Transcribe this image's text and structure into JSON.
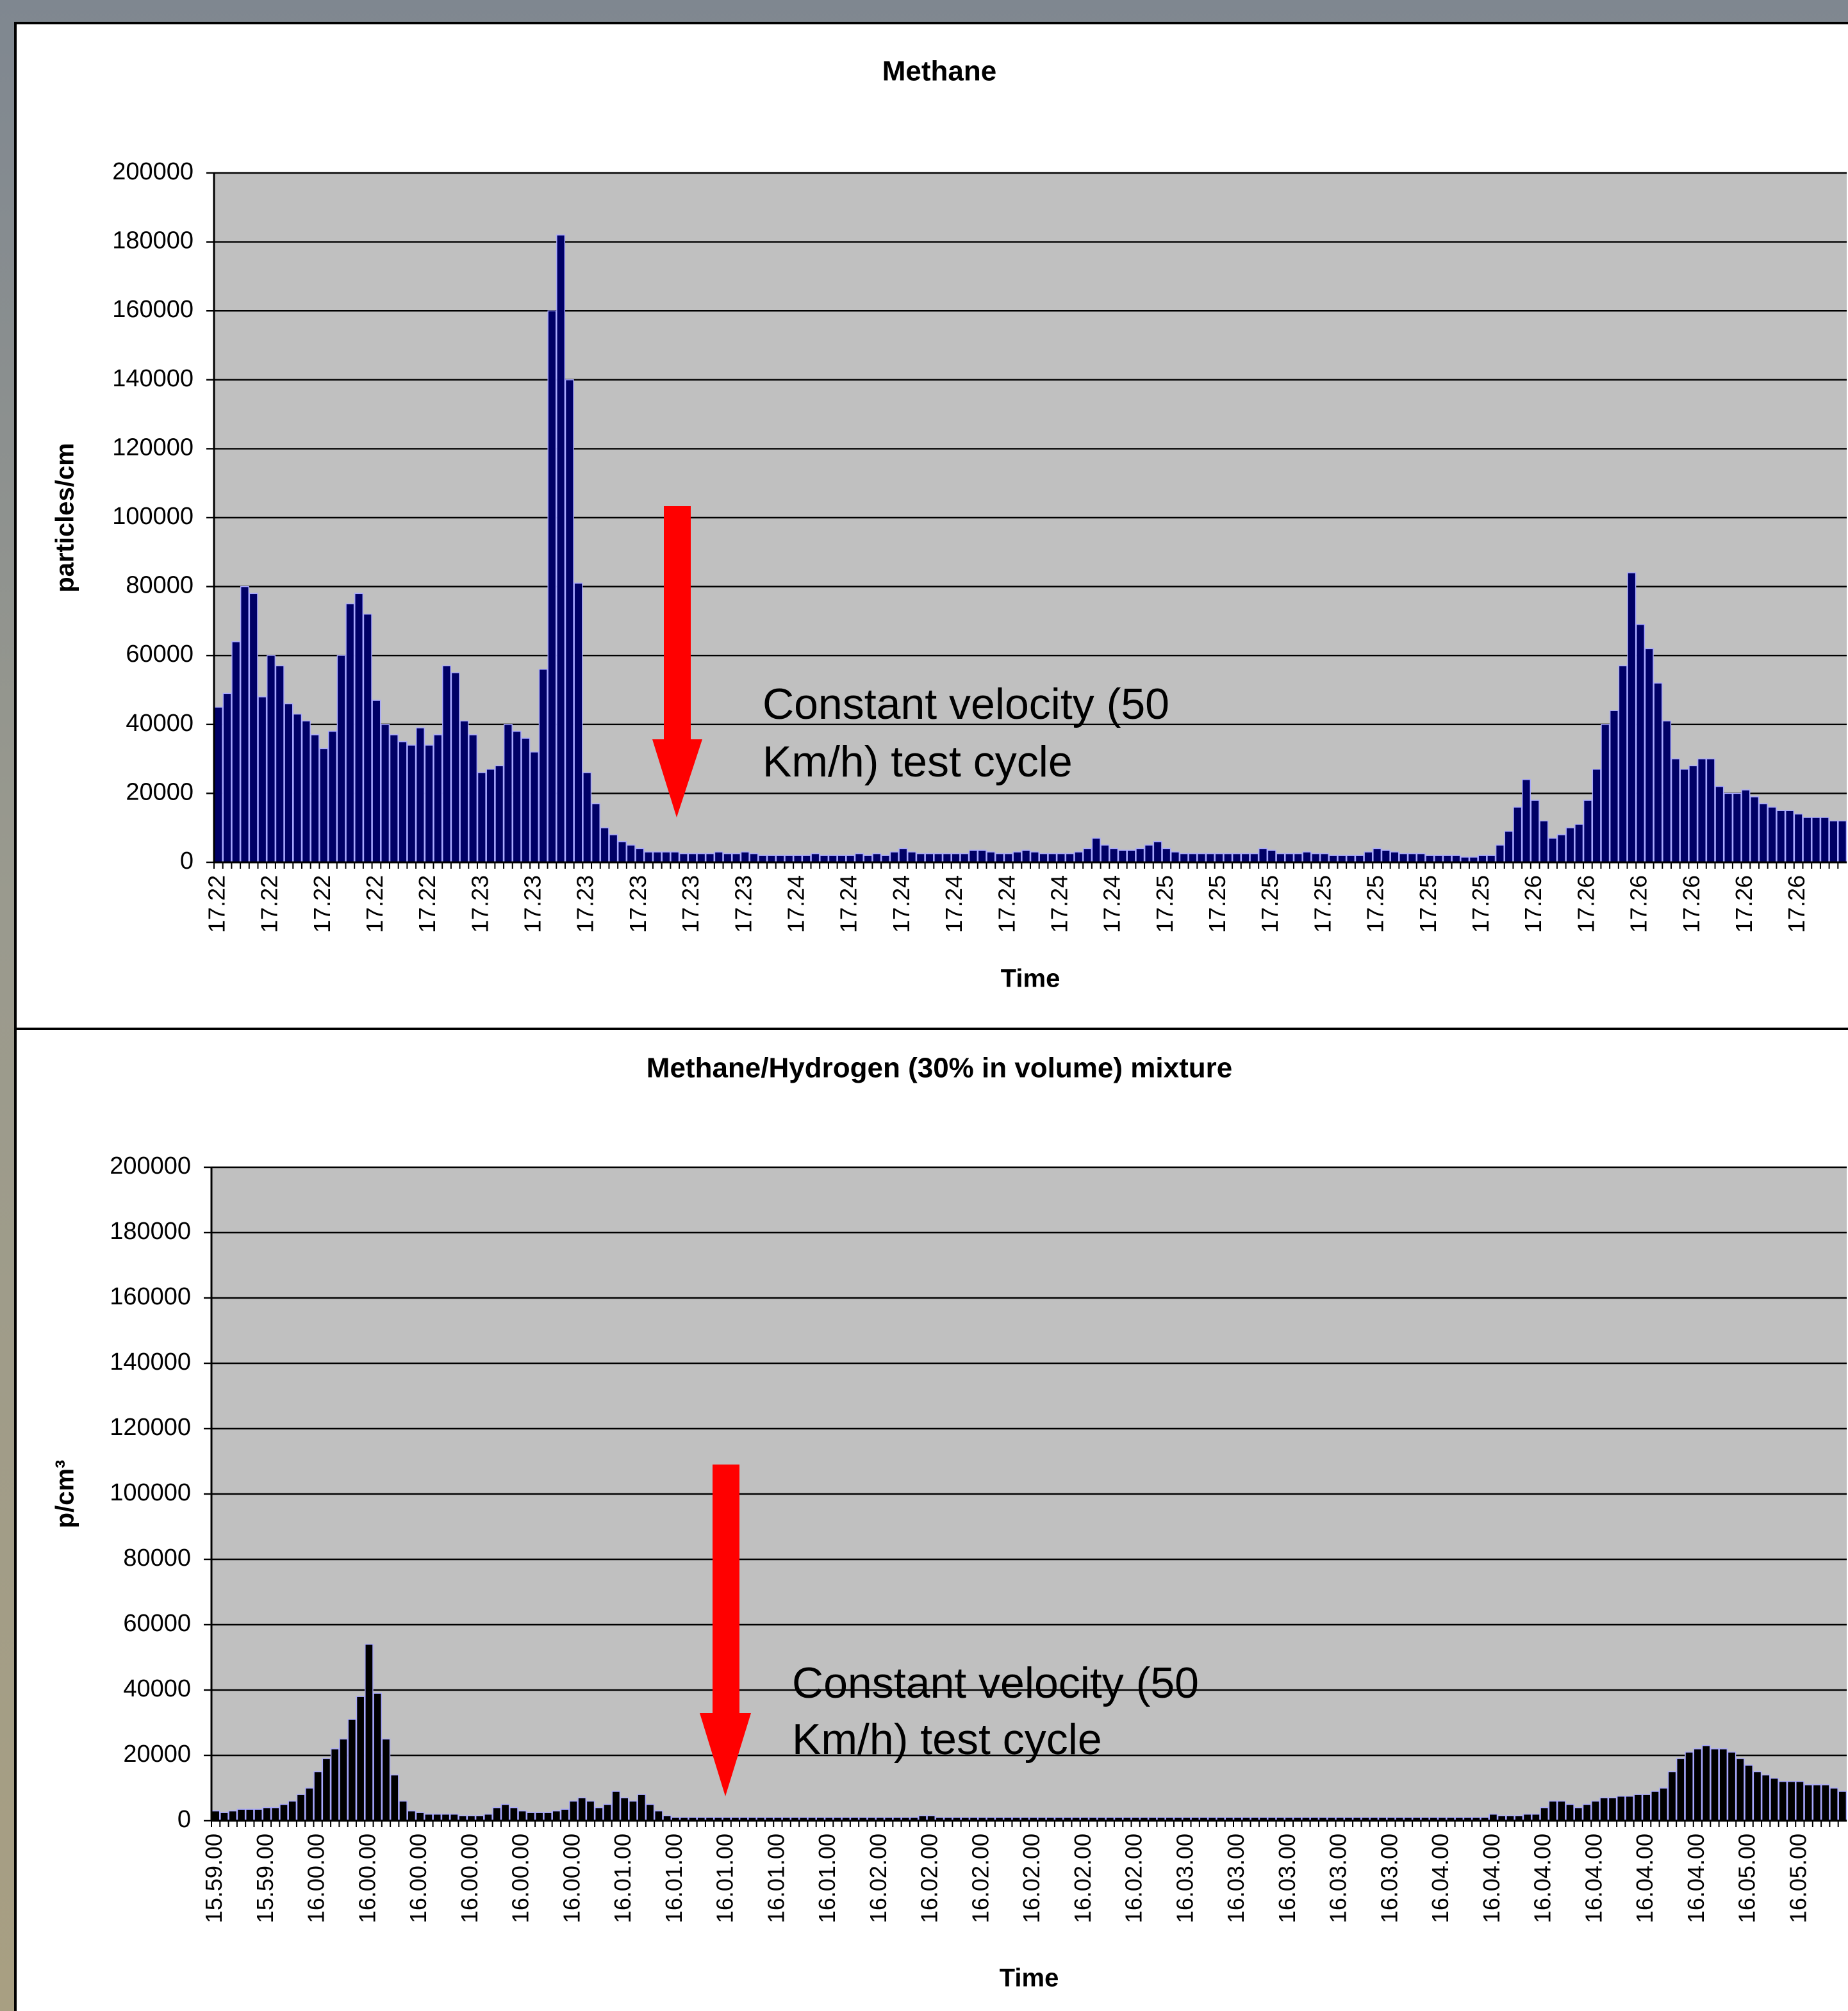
{
  "chart_data": [
    {
      "type": "bar",
      "title": "Methane",
      "xlabel": "Time",
      "ylabel": "particles/cm",
      "annotation": [
        "Constant velocity (50",
        "Km/h) test cycle"
      ],
      "color": "#000066",
      "ylim": [
        0,
        200000
      ],
      "yticks": [
        0,
        20000,
        40000,
        60000,
        80000,
        100000,
        120000,
        140000,
        160000,
        180000,
        200000
      ],
      "grid": true,
      "categories": [
        "17.22",
        null,
        null,
        null,
        null,
        null,
        "17.22",
        null,
        null,
        null,
        null,
        null,
        "17.22",
        null,
        null,
        null,
        null,
        null,
        "17.22",
        null,
        null,
        null,
        null,
        null,
        "17.22",
        null,
        null,
        null,
        null,
        null,
        "17.23",
        null,
        null,
        null,
        null,
        null,
        "17.23",
        null,
        null,
        null,
        null,
        null,
        "17.23",
        null,
        null,
        null,
        null,
        null,
        "17.23",
        null,
        null,
        null,
        null,
        null,
        "17.23",
        null,
        null,
        null,
        null,
        null,
        "17.23",
        null,
        null,
        null,
        null,
        null,
        "17.24",
        null,
        null,
        null,
        null,
        null,
        "17.24",
        null,
        null,
        null,
        null,
        null,
        "17.24",
        null,
        null,
        null,
        null,
        null,
        "17.24",
        null,
        null,
        null,
        null,
        null,
        "17.24",
        null,
        null,
        null,
        null,
        null,
        "17.24",
        null,
        null,
        null,
        null,
        null,
        "17.24",
        null,
        null,
        null,
        null,
        null,
        "17.25",
        null,
        null,
        null,
        null,
        null,
        "17.25",
        null,
        null,
        null,
        null,
        null,
        "17.25",
        null,
        null,
        null,
        null,
        null,
        "17.25",
        null,
        null,
        null,
        null,
        null,
        "17.25",
        null,
        null,
        null,
        null,
        null,
        "17.25",
        null,
        null,
        null,
        null,
        null,
        "17.25",
        null,
        null,
        null,
        null,
        null,
        "17.26",
        null,
        null,
        null,
        null,
        null,
        "17.26",
        null,
        null,
        null,
        null,
        null,
        "17.26",
        null,
        null,
        null,
        null,
        null,
        "17.26",
        null,
        null,
        null,
        null,
        null,
        "17.26",
        null,
        null,
        null,
        null,
        null,
        "17.26",
        null,
        null,
        null,
        null,
        null
      ],
      "values": [
        45000,
        49000,
        64000,
        80000,
        78000,
        48000,
        60000,
        57000,
        46000,
        43000,
        41000,
        37000,
        33000,
        38000,
        60000,
        75000,
        78000,
        72000,
        47000,
        40000,
        37000,
        35000,
        34000,
        39000,
        34000,
        37000,
        57000,
        55000,
        41000,
        37000,
        26000,
        27000,
        28000,
        40000,
        38000,
        36000,
        32000,
        56000,
        160000,
        182000,
        140000,
        81000,
        26000,
        17000,
        10000,
        8000,
        6000,
        5000,
        4000,
        3000,
        3000,
        3000,
        3000,
        2500,
        2500,
        2500,
        2500,
        3000,
        2500,
        2500,
        3000,
        2500,
        2000,
        2000,
        2000,
        2000,
        2000,
        2000,
        2500,
        2000,
        2000,
        2000,
        2000,
        2500,
        2000,
        2500,
        2000,
        3000,
        4000,
        3000,
        2500,
        2500,
        2500,
        2500,
        2500,
        2500,
        3500,
        3500,
        3000,
        2500,
        2500,
        3000,
        3500,
        3000,
        2500,
        2500,
        2500,
        2500,
        3000,
        4000,
        7000,
        5000,
        4000,
        3500,
        3500,
        4000,
        5000,
        6000,
        4000,
        3000,
        2500,
        2500,
        2500,
        2500,
        2500,
        2500,
        2500,
        2500,
        2500,
        4000,
        3500,
        2500,
        2500,
        2500,
        3000,
        2500,
        2500,
        2000,
        2000,
        2000,
        2000,
        3000,
        4000,
        3500,
        3000,
        2500,
        2500,
        2500,
        2000,
        2000,
        2000,
        2000,
        1500,
        1500,
        2000,
        2000,
        5000,
        9000,
        16000,
        24000,
        18000,
        12000,
        7000,
        8000,
        10000,
        11000,
        18000,
        27000,
        40000,
        44000,
        57000,
        84000,
        69000,
        62000,
        52000,
        41000,
        30000,
        27000,
        28000,
        30000,
        30000,
        22000,
        20000,
        20000,
        21000,
        19000,
        17000,
        16000,
        15000,
        15000,
        14000,
        13000,
        13000,
        13000,
        12000,
        12000
      ]
    },
    {
      "type": "bar",
      "title": "Methane/Hydrogen (30% in volume) mixture",
      "xlabel": "Time",
      "ylabel": "p/cm³",
      "annotation": [
        "Constant velocity (50",
        "Km/h) test cycle"
      ],
      "color": "#000000",
      "ylim": [
        0,
        200000
      ],
      "yticks": [
        0,
        20000,
        40000,
        60000,
        80000,
        100000,
        120000,
        140000,
        160000,
        180000,
        200000
      ],
      "grid": true,
      "categories": [
        "15.59.00",
        null,
        null,
        null,
        null,
        null,
        "15.59.00",
        null,
        null,
        null,
        null,
        null,
        "16.00.00",
        null,
        null,
        null,
        null,
        null,
        "16.00.00",
        null,
        null,
        null,
        null,
        null,
        "16.00.00",
        null,
        null,
        null,
        null,
        null,
        "16.00.00",
        null,
        null,
        null,
        null,
        null,
        "16.00.00",
        null,
        null,
        null,
        null,
        null,
        "16.00.00",
        null,
        null,
        null,
        null,
        null,
        "16.01.00",
        null,
        null,
        null,
        null,
        null,
        "16.01.00",
        null,
        null,
        null,
        null,
        null,
        "16.01.00",
        null,
        null,
        null,
        null,
        null,
        "16.01.00",
        null,
        null,
        null,
        null,
        null,
        "16.01.00",
        null,
        null,
        null,
        null,
        null,
        "16.02.00",
        null,
        null,
        null,
        null,
        null,
        "16.02.00",
        null,
        null,
        null,
        null,
        null,
        "16.02.00",
        null,
        null,
        null,
        null,
        null,
        "16.02.00",
        null,
        null,
        null,
        null,
        null,
        "16.02.00",
        null,
        null,
        null,
        null,
        null,
        "16.02.00",
        null,
        null,
        null,
        null,
        null,
        "16.03.00",
        null,
        null,
        null,
        null,
        null,
        "16.03.00",
        null,
        null,
        null,
        null,
        null,
        "16.03.00",
        null,
        null,
        null,
        null,
        null,
        "16.03.00",
        null,
        null,
        null,
        null,
        null,
        "16.03.00",
        null,
        null,
        null,
        null,
        null,
        "16.04.00",
        null,
        null,
        null,
        null,
        null,
        "16.04.00",
        null,
        null,
        null,
        null,
        null,
        "16.04.00",
        null,
        null,
        null,
        null,
        null,
        "16.04.00",
        null,
        null,
        null,
        null,
        null,
        "16.04.00",
        null,
        null,
        null,
        null,
        null,
        "16.04.00",
        null,
        null,
        null,
        null,
        null,
        "16.05.00",
        null,
        null,
        null,
        null,
        null,
        "16.05.00",
        null,
        null,
        null,
        null,
        null
      ],
      "values": [
        3000,
        2500,
        3000,
        3500,
        3500,
        3500,
        4000,
        4000,
        5000,
        6000,
        8000,
        10000,
        15000,
        19000,
        22000,
        25000,
        31000,
        38000,
        54000,
        39000,
        25000,
        14000,
        6000,
        3000,
        2500,
        2000,
        2000,
        2000,
        2000,
        1500,
        1500,
        1500,
        2000,
        4000,
        5000,
        4000,
        3000,
        2500,
        2500,
        2500,
        3000,
        3500,
        6000,
        7000,
        6000,
        4000,
        5000,
        9000,
        7000,
        6000,
        8000,
        5000,
        3000,
        1500,
        1000,
        1000,
        1000,
        1000,
        1000,
        1000,
        1000,
        1000,
        1000,
        1000,
        1000,
        1000,
        1000,
        1000,
        1000,
        1000,
        1000,
        1000,
        1000,
        1000,
        1000,
        1000,
        1000,
        1000,
        1000,
        1000,
        1000,
        1000,
        1000,
        1500,
        1500,
        1000,
        1000,
        1000,
        1000,
        1000,
        1000,
        1000,
        1000,
        1000,
        1000,
        1000,
        1000,
        1000,
        1000,
        1000,
        1000,
        1000,
        1000,
        1000,
        1000,
        1000,
        1000,
        1000,
        1000,
        1000,
        1000,
        1000,
        1000,
        1000,
        1000,
        1000,
        1000,
        1000,
        1000,
        1000,
        1000,
        1000,
        1000,
        1000,
        1000,
        1000,
        1000,
        1000,
        1000,
        1000,
        1000,
        1000,
        1000,
        1000,
        1000,
        1000,
        1000,
        1000,
        1000,
        1000,
        1000,
        1000,
        1000,
        1000,
        1000,
        1000,
        1000,
        1000,
        1000,
        1000,
        2000,
        1500,
        1500,
        1500,
        2000,
        2000,
        4000,
        6000,
        6000,
        5000,
        4000,
        5000,
        6000,
        7000,
        7000,
        7500,
        7500,
        8000,
        8000,
        9000,
        10000,
        15000,
        19000,
        21000,
        22000,
        23000,
        22000,
        22000,
        21000,
        19000,
        17000,
        15000,
        14000,
        13000,
        12000,
        12000,
        12000,
        11000,
        11000,
        11000,
        10000,
        9000
      ]
    }
  ]
}
